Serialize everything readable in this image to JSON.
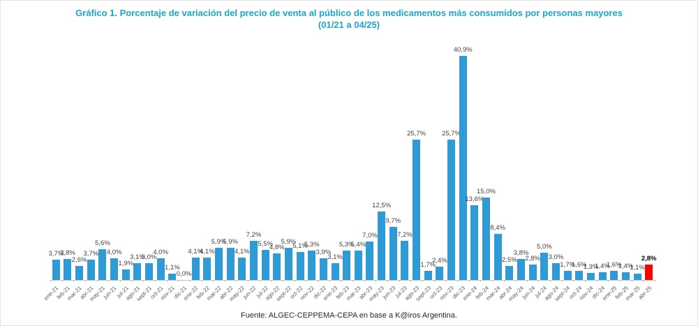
{
  "title": {
    "line1": "Gráfico 1. Porcentaje de variación del precio de venta al público de los medicamentos más consumidos por personas mayores",
    "line2": "(01/21 a 04/25)"
  },
  "footer": "Fuente: ALGEC-CEPPEMA-CEPA en base a K@iros Argentina.",
  "colors": {
    "title": "#1ba7c9",
    "bar": "#2e9bd6",
    "highlight_bar": "#ff0000",
    "axis": "#bfbfbf",
    "value_label": "#3f3f3f",
    "tick_label": "#595959"
  },
  "chart_data": {
    "type": "bar",
    "title": "Gráfico 1. Porcentaje de variación del precio de venta al público de los medicamentos más consumidos por personas mayores (01/21 a 04/25)",
    "xlabel": "",
    "ylabel": "",
    "ylim": [
      0,
      44
    ],
    "grid": false,
    "legend": false,
    "bar_color": "#2e9bd6",
    "highlight": {
      "index": 51,
      "color": "#ff0000"
    },
    "categories": [
      "ene-21",
      "feb-21",
      "mar-21",
      "abr-21",
      "may-21",
      "jun-21",
      "jul-21",
      "ago-21",
      "sept-21",
      "oct-21",
      "nov-21",
      "dic-21",
      "ene-22",
      "feb-22",
      "mar-22",
      "abr-22",
      "may-22",
      "jun-22",
      "jul-22",
      "ago-22",
      "sept-22",
      "oct-22",
      "nov-22",
      "dic-22",
      "ene-23",
      "feb-23",
      "mar-23",
      "abr-23",
      "may-23",
      "jun-23",
      "jul-23",
      "ago-23",
      "sept-23",
      "oct-23",
      "nov-23",
      "dic-23",
      "ene-24",
      "feb-24",
      "mar-24",
      "abr-24",
      "may-24",
      "jun-24",
      "jul-24",
      "ago-24",
      "sept-24",
      "oct-24",
      "nov-24",
      "dic-24",
      "ene-25",
      "feb-25",
      "mar-25",
      "abr-25"
    ],
    "values": [
      3.7,
      3.8,
      2.6,
      3.7,
      5.6,
      4.0,
      1.9,
      3.1,
      3.0,
      4.0,
      1.1,
      0.0,
      4.1,
      4.1,
      5.9,
      5.9,
      4.1,
      7.2,
      5.5,
      4.8,
      5.9,
      5.1,
      5.3,
      3.9,
      3.1,
      5.3,
      5.4,
      7.0,
      12.5,
      9.7,
      7.2,
      25.7,
      1.7,
      2.4,
      25.7,
      40.9,
      13.6,
      15.0,
      8.4,
      2.5,
      3.8,
      2.8,
      5.0,
      3.0,
      1.7,
      1.6,
      1.3,
      1.4,
      1.6,
      1.4,
      1.1,
      2.8
    ],
    "value_labels": [
      "3,7%",
      "3,8%",
      "2,6%",
      "3,7%",
      "5,6%",
      "4,0%",
      "1,9%",
      "3,1%",
      "3,0%",
      "4,0%",
      "1,1%",
      "0,0%",
      "4,1%",
      "4,1%",
      "5,9%",
      "5,9%",
      "4,1%",
      "7,2%",
      "5,5%",
      "4,8%",
      "5,9%",
      "5,1%",
      "5,3%",
      "3,9%",
      "3,1%",
      "5,3%",
      "5,4%",
      "7,0%",
      "12,5%",
      "9,7%",
      "7,2%",
      "25,7%",
      "1,7%",
      "2,4%",
      "25,7%",
      "40,9%",
      "13,6%",
      "15,0%",
      "8,4%",
      "2,5%",
      "3,8%",
      "2,8%",
      "5,0%",
      "3,0%",
      "1,7%",
      "1,6%",
      "1,3%",
      "1,4%",
      "1,6%",
      "1,4%",
      "1,1%",
      "2,8%"
    ]
  }
}
